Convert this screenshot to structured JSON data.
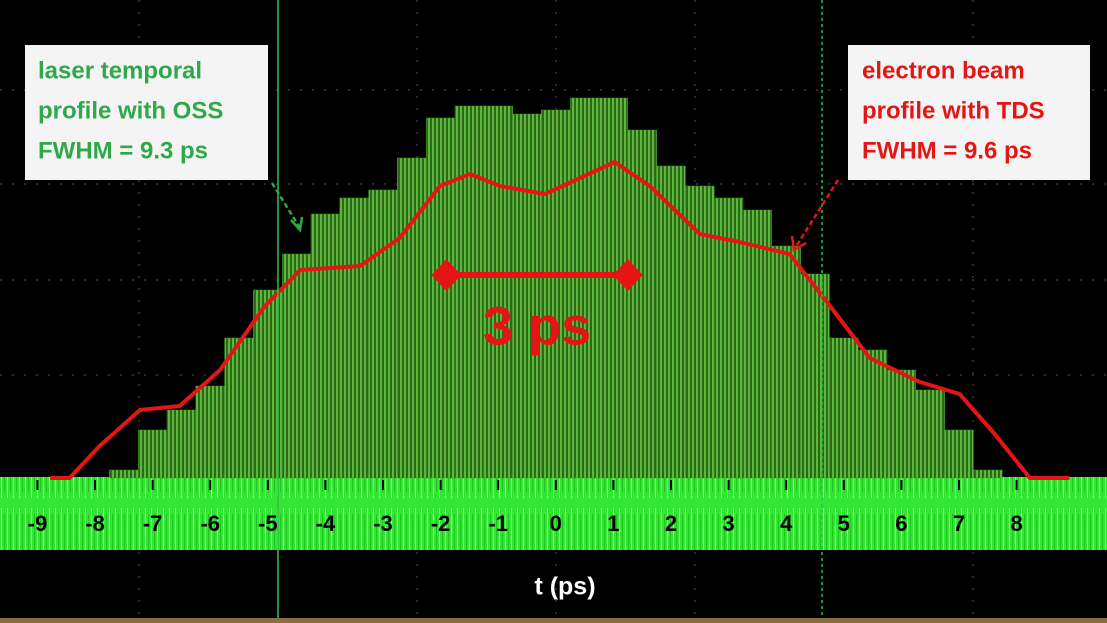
{
  "chart_data": {
    "type": "line",
    "xlabel": "t (ps)",
    "xlim": [
      -9.65,
      9.57
    ],
    "xticks": [
      -9,
      -8,
      -7,
      -6,
      -5,
      -4,
      -3,
      -2,
      -1,
      0,
      1,
      2,
      3,
      4,
      5,
      6,
      7,
      8
    ],
    "ylim": [
      0,
      1.195
    ],
    "series": [
      {
        "type": "bar",
        "color": "#3f8f25",
        "x": [
          -7.5,
          -7,
          -6.5,
          -6,
          -5.5,
          -5,
          -4.5,
          -4,
          -3.5,
          -3,
          -2.5,
          -2,
          -1.5,
          -1,
          -0.5,
          0,
          0.5,
          1,
          1.5,
          2,
          2.5,
          3,
          3.5,
          4,
          4.5,
          5,
          5.5,
          6,
          6.5,
          7,
          7.5
        ],
        "values": [
          0.02,
          0.12,
          0.17,
          0.23,
          0.35,
          0.47,
          0.56,
          0.66,
          0.7,
          0.72,
          0.8,
          0.9,
          0.93,
          0.93,
          0.91,
          0.92,
          0.95,
          0.95,
          0.87,
          0.78,
          0.73,
          0.7,
          0.67,
          0.58,
          0.51,
          0.35,
          0.32,
          0.27,
          0.22,
          0.12,
          0.02
        ]
      },
      {
        "type": "line",
        "color": "#e51515",
        "x": [
          -8.78,
          -8.44,
          -7.92,
          -7.22,
          -6.53,
          -5.83,
          -5.05,
          -4.44,
          -3.4,
          -2.71,
          -2.01,
          -1.49,
          -0.97,
          -0.19,
          0.42,
          1.02,
          1.63,
          2.5,
          3.19,
          4.06,
          4.76,
          5.45,
          6.32,
          7.01,
          7.62,
          8.23,
          8.92
        ],
        "values": [
          0,
          0,
          0.08,
          0.17,
          0.18,
          0.27,
          0.43,
          0.52,
          0.53,
          0.6,
          0.73,
          0.76,
          0.73,
          0.71,
          0.75,
          0.79,
          0.73,
          0.61,
          0.59,
          0.56,
          0.43,
          0.3,
          0.24,
          0.21,
          0.11,
          0,
          0
        ]
      }
    ],
    "annotations": [
      {
        "lines": [
          "laser temporal",
          "profile with OSS",
          "FWHM = 9.3 ps"
        ],
        "color": "#2fa84a"
      },
      {
        "lines": [
          "electron beam",
          "profile with TDS",
          "FWHM = 9.6 ps"
        ],
        "color": "#e51515"
      }
    ],
    "scale_bar": {
      "label": "3 ps",
      "x": [
        -1.9,
        1.25
      ],
      "color": "#e51515"
    }
  }
}
